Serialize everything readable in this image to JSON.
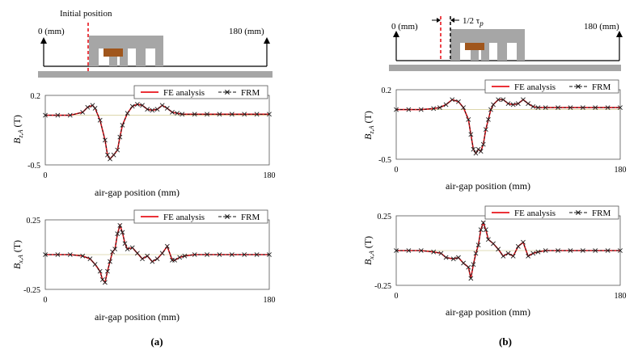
{
  "panel_a": {
    "caption": "(a)",
    "diagram": {
      "origin_label": "0 (mm)",
      "end_label": "180 (mm)",
      "marker_label": "Initial position"
    },
    "colors": {
      "fe": "#e8141c",
      "frm": "#111111",
      "marker": "#e8141c",
      "core": "#a6a6a6",
      "magnet": "#a0561c",
      "zero_line": "#d8d0a0"
    }
  },
  "panel_b": {
    "caption": "(b)",
    "diagram": {
      "origin_label": "0 (mm)",
      "end_label": "180 (mm)",
      "shift_label": "1/2 τ",
      "shift_subscript": "p"
    },
    "colors": {
      "fe": "#e8141c",
      "frm": "#111111",
      "marker": "#e8141c",
      "marker2": "#111111",
      "core": "#a6a6a6",
      "magnet": "#a0561c",
      "zero_line": "#d8d0a0"
    }
  },
  "chart_data": [
    {
      "id": "a-bz",
      "type": "line",
      "panel": "a",
      "ylabel": "B",
      "ylabel_sub": "z,A",
      "ylabel_unit": "(T)",
      "xlabel": "air-gap position (mm)",
      "xlim": [
        0,
        180
      ],
      "ylim": [
        -0.5,
        0.2
      ],
      "xticks": [
        "0",
        "180"
      ],
      "yticks": [
        "0.2",
        "-0.5"
      ],
      "legend": [
        "FE analysis",
        "FRM"
      ],
      "legend_position": "top-right",
      "series": [
        {
          "name": "FE analysis",
          "x": [
            0,
            10,
            20,
            30,
            34,
            38,
            40,
            44,
            48,
            50,
            52,
            55,
            58,
            60,
            62,
            66,
            70,
            74,
            78,
            82,
            86,
            90,
            94,
            98,
            102,
            106,
            110,
            120,
            130,
            140,
            150,
            160,
            170,
            180
          ],
          "y": [
            0,
            0,
            0,
            0.03,
            0.08,
            0.1,
            0.07,
            -0.05,
            -0.25,
            -0.4,
            -0.44,
            -0.4,
            -0.35,
            -0.22,
            -0.1,
            0.02,
            0.09,
            0.11,
            0.1,
            0.06,
            0.05,
            0.06,
            0.1,
            0.07,
            0.03,
            0.02,
            0.01,
            0.01,
            0.01,
            0.01,
            0.01,
            0.01,
            0.01,
            0.01
          ]
        },
        {
          "name": "FRM",
          "x": [
            0,
            10,
            20,
            30,
            34,
            38,
            40,
            44,
            48,
            50,
            52,
            55,
            58,
            60,
            62,
            66,
            70,
            74,
            78,
            82,
            86,
            90,
            94,
            98,
            102,
            106,
            110,
            120,
            130,
            140,
            150,
            160,
            170,
            180
          ],
          "y": [
            0,
            0,
            0,
            0.03,
            0.08,
            0.1,
            0.07,
            -0.05,
            -0.25,
            -0.4,
            -0.44,
            -0.4,
            -0.35,
            -0.22,
            -0.1,
            0.02,
            0.09,
            0.11,
            0.1,
            0.06,
            0.05,
            0.06,
            0.1,
            0.07,
            0.03,
            0.02,
            0.01,
            0.01,
            0.01,
            0.01,
            0.01,
            0.01,
            0.01,
            0.01
          ]
        }
      ]
    },
    {
      "id": "a-bx",
      "type": "line",
      "panel": "a",
      "ylabel": "B",
      "ylabel_sub": "x,A",
      "ylabel_unit": "(T)",
      "xlabel": "air-gap position (mm)",
      "xlim": [
        0,
        180
      ],
      "ylim": [
        -0.25,
        0.25
      ],
      "xticks": [
        "0",
        "180"
      ],
      "yticks": [
        "0.25",
        "-0.25"
      ],
      "legend": [
        "FE analysis",
        "FRM"
      ],
      "legend_position": "top-right",
      "series": [
        {
          "name": "FE analysis",
          "x": [
            0,
            10,
            20,
            30,
            36,
            40,
            44,
            46,
            48,
            50,
            52,
            54,
            56,
            58,
            60,
            62,
            64,
            66,
            70,
            74,
            78,
            82,
            86,
            90,
            94,
            98,
            102,
            104,
            108,
            112,
            120,
            130,
            140,
            150,
            160,
            170,
            180
          ],
          "y": [
            0,
            0,
            0,
            -0.01,
            -0.03,
            -0.07,
            -0.12,
            -0.18,
            -0.2,
            -0.12,
            -0.05,
            0.02,
            0.04,
            0.15,
            0.21,
            0.16,
            0.08,
            0.04,
            0.05,
            0.01,
            -0.03,
            -0.01,
            -0.05,
            -0.03,
            0.01,
            0.06,
            -0.04,
            -0.04,
            -0.02,
            -0.01,
            0,
            0,
            0,
            0,
            0,
            0,
            0
          ]
        },
        {
          "name": "FRM",
          "x": [
            0,
            10,
            20,
            30,
            36,
            40,
            44,
            46,
            48,
            50,
            52,
            54,
            56,
            58,
            60,
            62,
            64,
            66,
            70,
            74,
            78,
            82,
            86,
            90,
            94,
            98,
            102,
            104,
            108,
            112,
            120,
            130,
            140,
            150,
            160,
            170,
            180
          ],
          "y": [
            0,
            0,
            0,
            -0.01,
            -0.03,
            -0.07,
            -0.12,
            -0.18,
            -0.2,
            -0.12,
            -0.05,
            0.02,
            0.04,
            0.15,
            0.21,
            0.16,
            0.08,
            0.04,
            0.05,
            0.01,
            -0.03,
            -0.01,
            -0.05,
            -0.03,
            0.01,
            0.06,
            -0.04,
            -0.04,
            -0.02,
            -0.01,
            0,
            0,
            0,
            0,
            0,
            0,
            0
          ]
        }
      ]
    },
    {
      "id": "b-bz",
      "type": "line",
      "panel": "b",
      "ylabel": "B",
      "ylabel_sub": "z,A",
      "ylabel_unit": "(T)",
      "xlabel": "air-gap position (mm)",
      "xlim": [
        0,
        180
      ],
      "ylim": [
        -0.5,
        0.2
      ],
      "xticks": [
        "0",
        "180"
      ],
      "yticks": [
        "0.2",
        "-0.5"
      ],
      "legend": [
        "FE analysis",
        "FRM"
      ],
      "legend_position": "top-right",
      "series": [
        {
          "name": "FE analysis",
          "x": [
            0,
            10,
            20,
            30,
            35,
            40,
            45,
            50,
            54,
            58,
            60,
            62,
            64,
            66,
            68,
            70,
            72,
            74,
            76,
            78,
            82,
            86,
            90,
            94,
            98,
            102,
            106,
            110,
            114,
            120,
            130,
            140,
            150,
            160,
            170,
            180
          ],
          "y": [
            0,
            0,
            0,
            0.01,
            0.02,
            0.05,
            0.1,
            0.08,
            0.02,
            -0.1,
            -0.25,
            -0.4,
            -0.44,
            -0.4,
            -0.42,
            -0.35,
            -0.2,
            -0.1,
            0.0,
            0.05,
            0.1,
            0.1,
            0.06,
            0.05,
            0.06,
            0.1,
            0.06,
            0.03,
            0.02,
            0.02,
            0.02,
            0.02,
            0.02,
            0.02,
            0.02,
            0.02
          ]
        },
        {
          "name": "FRM",
          "x": [
            0,
            10,
            20,
            30,
            35,
            40,
            45,
            50,
            54,
            58,
            60,
            62,
            64,
            66,
            68,
            70,
            72,
            74,
            76,
            78,
            82,
            86,
            90,
            94,
            98,
            102,
            106,
            110,
            114,
            120,
            130,
            140,
            150,
            160,
            170,
            180
          ],
          "y": [
            0,
            0,
            0,
            0.01,
            0.02,
            0.05,
            0.1,
            0.08,
            0.02,
            -0.1,
            -0.25,
            -0.4,
            -0.44,
            -0.4,
            -0.42,
            -0.35,
            -0.2,
            -0.1,
            0.0,
            0.05,
            0.1,
            0.1,
            0.06,
            0.05,
            0.06,
            0.1,
            0.06,
            0.03,
            0.02,
            0.02,
            0.02,
            0.02,
            0.02,
            0.02,
            0.02,
            0.02
          ]
        }
      ]
    },
    {
      "id": "b-bx",
      "type": "line",
      "panel": "b",
      "ylabel": "B",
      "ylabel_sub": "x,A",
      "ylabel_unit": "(T)",
      "xlabel": "air-gap position (mm)",
      "xlim": [
        0,
        180
      ],
      "ylim": [
        -0.25,
        0.25
      ],
      "xticks": [
        "0",
        "180"
      ],
      "yticks": [
        "0.25",
        "-0.25"
      ],
      "legend": [
        "FE analysis",
        "FRM"
      ],
      "legend_position": "top-right",
      "series": [
        {
          "name": "FE analysis",
          "x": [
            0,
            10,
            20,
            30,
            36,
            40,
            46,
            50,
            54,
            58,
            60,
            62,
            64,
            66,
            68,
            70,
            72,
            74,
            78,
            82,
            86,
            90,
            94,
            98,
            102,
            106,
            110,
            114,
            120,
            130,
            140,
            150,
            160,
            170,
            180
          ],
          "y": [
            0,
            0,
            0,
            -0.01,
            -0.02,
            -0.05,
            -0.06,
            -0.05,
            -0.09,
            -0.12,
            -0.2,
            -0.1,
            -0.02,
            0.04,
            0.15,
            0.2,
            0.15,
            0.08,
            0.05,
            0.01,
            -0.04,
            -0.02,
            -0.04,
            0.03,
            0.06,
            -0.04,
            -0.02,
            -0.01,
            0,
            0,
            0,
            0,
            0,
            0,
            0
          ]
        },
        {
          "name": "FRM",
          "x": [
            0,
            10,
            20,
            30,
            36,
            40,
            46,
            50,
            54,
            58,
            60,
            62,
            64,
            66,
            68,
            70,
            72,
            74,
            78,
            82,
            86,
            90,
            94,
            98,
            102,
            106,
            110,
            114,
            120,
            130,
            140,
            150,
            160,
            170,
            180
          ],
          "y": [
            0,
            0,
            0,
            -0.01,
            -0.02,
            -0.05,
            -0.06,
            -0.05,
            -0.09,
            -0.12,
            -0.2,
            -0.1,
            -0.02,
            0.04,
            0.15,
            0.2,
            0.15,
            0.08,
            0.05,
            0.01,
            -0.04,
            -0.02,
            -0.04,
            0.03,
            0.06,
            -0.04,
            -0.02,
            -0.01,
            0,
            0,
            0,
            0,
            0,
            0,
            0
          ]
        }
      ]
    }
  ]
}
